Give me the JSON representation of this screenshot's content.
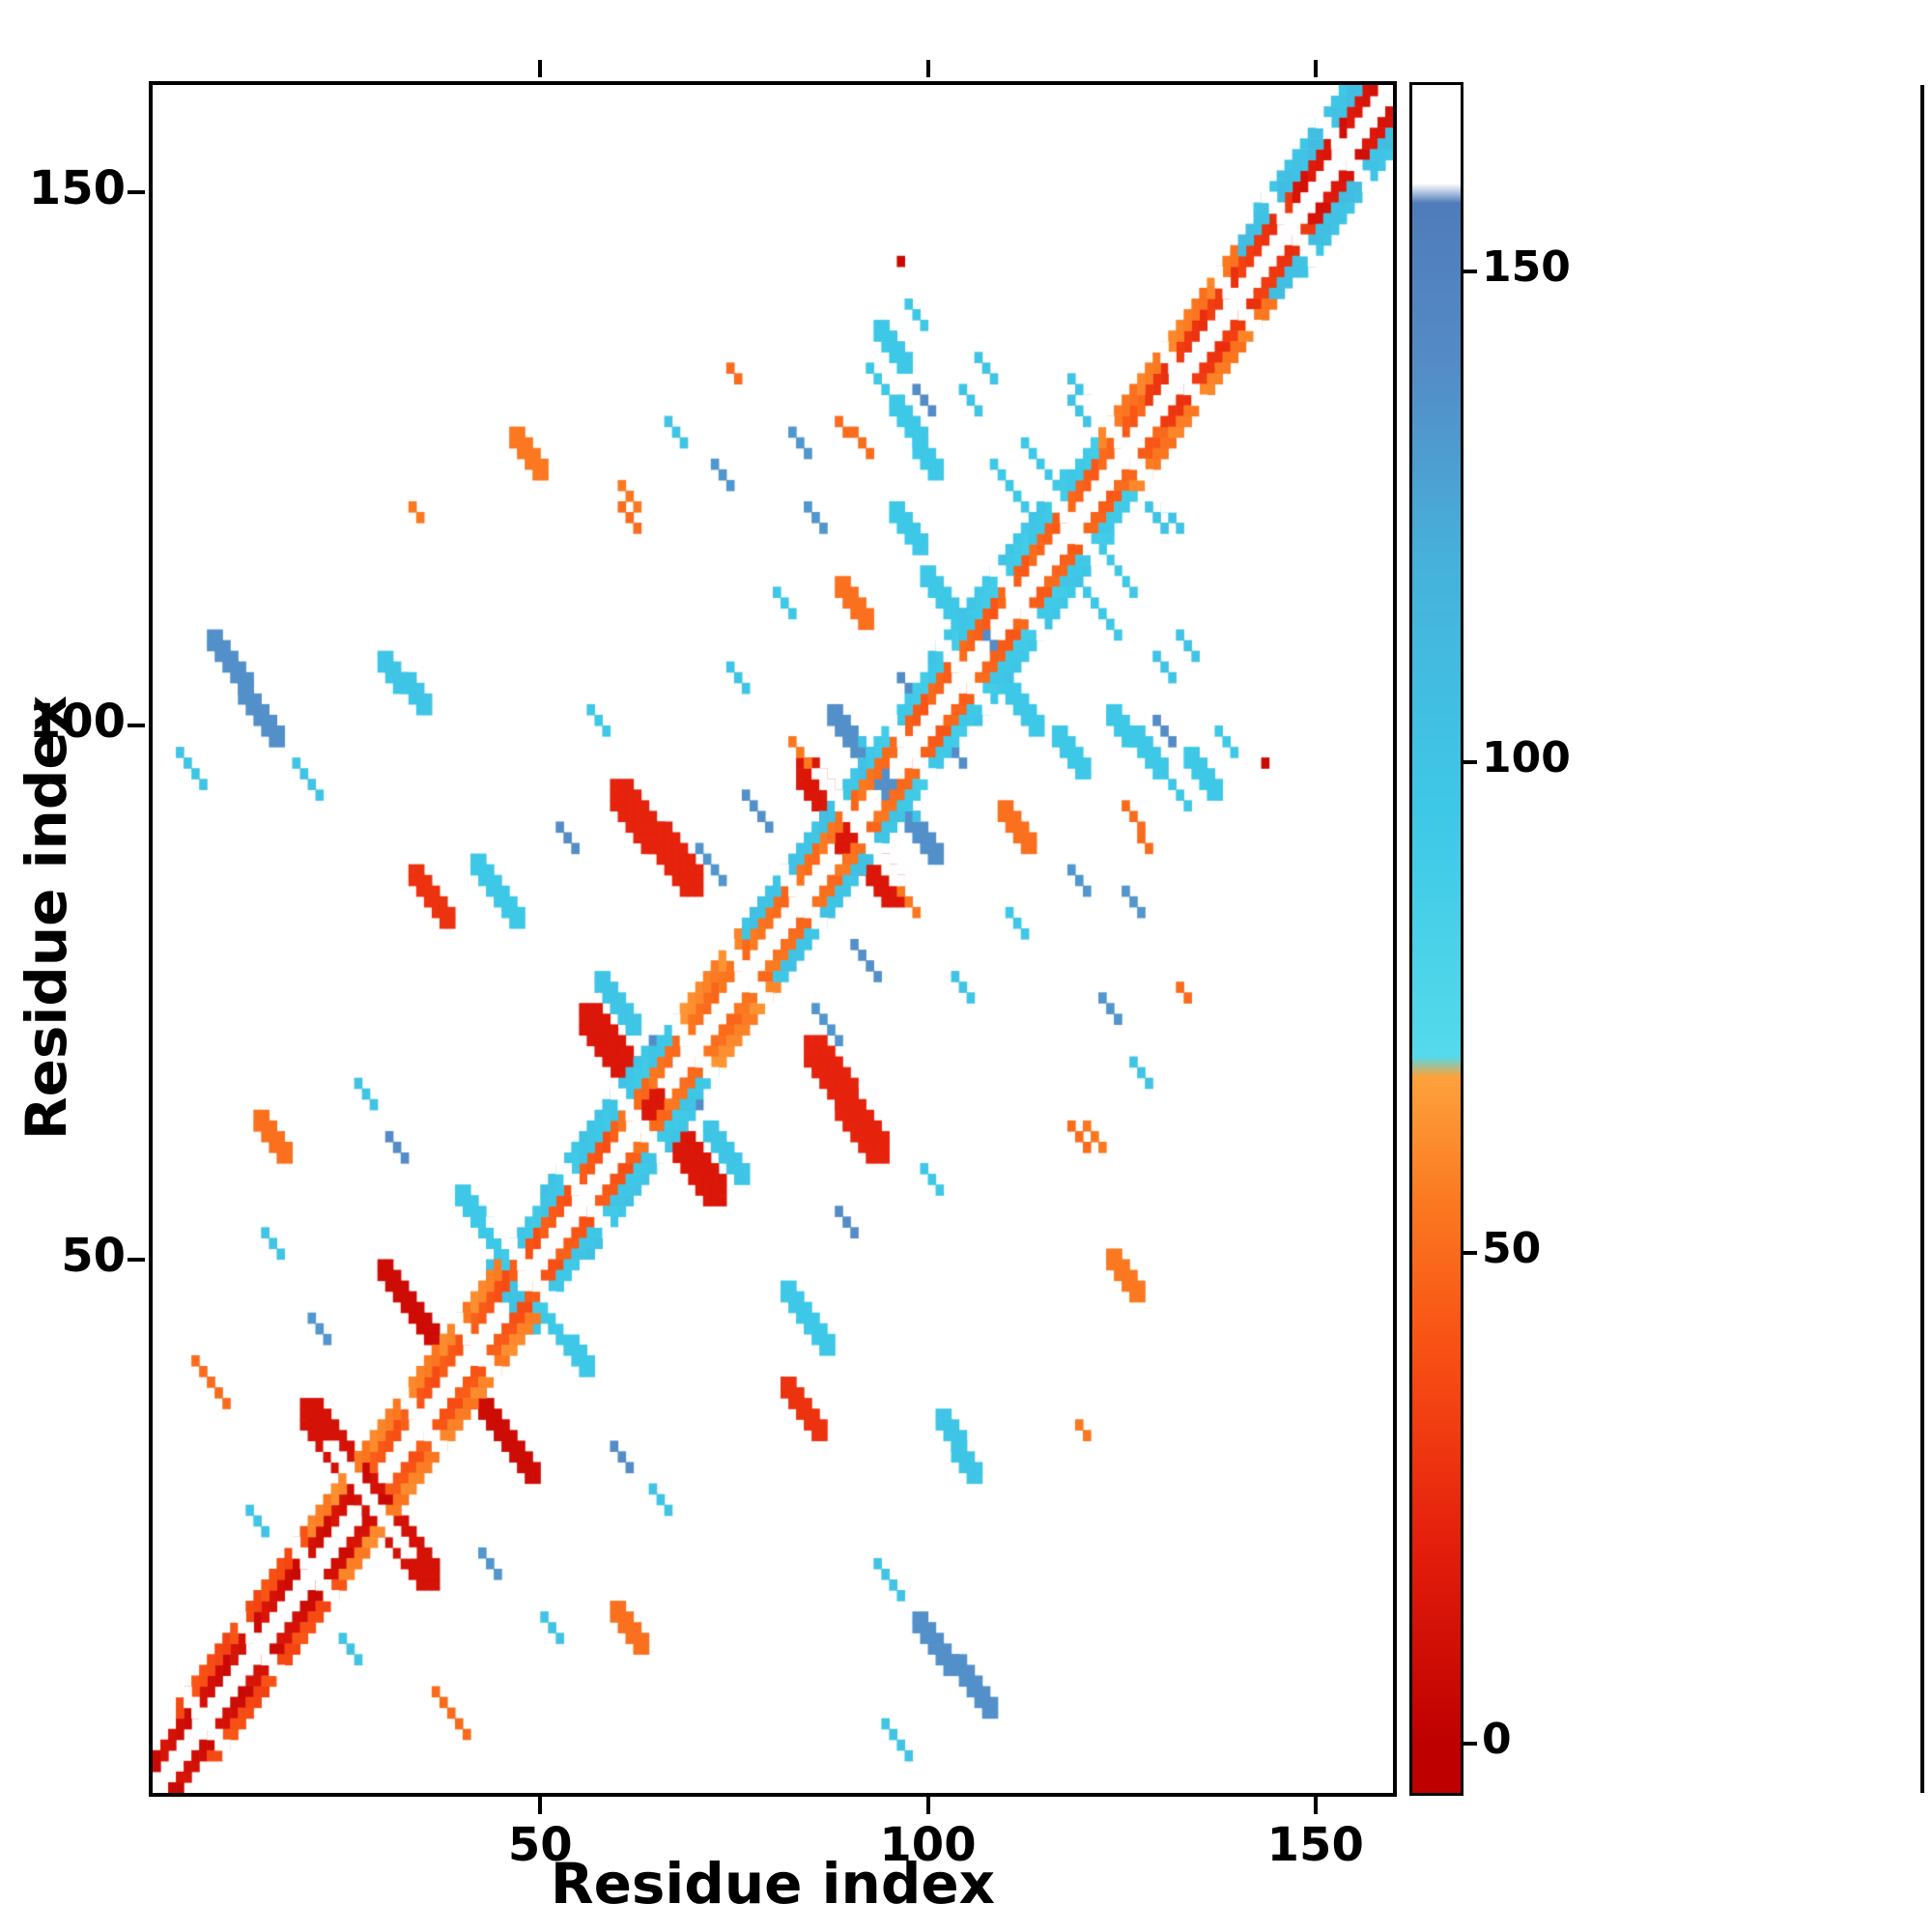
{
  "figure": {
    "background": "#ffffff",
    "frame_color": "#000000"
  },
  "chart_data": {
    "type": "heatmap",
    "title": "",
    "xlabel": "Residue index",
    "ylabel": "Residue index",
    "x_range": [
      0,
      160
    ],
    "y_range": [
      0,
      160
    ],
    "x_ticks": [
      "50",
      "100",
      "150"
    ],
    "x_tick_values": [
      50,
      100,
      150
    ],
    "y_ticks": [
      "50",
      "100",
      "150"
    ],
    "y_tick_values": [
      50,
      100,
      150
    ],
    "grid": false,
    "legend_position": "colorbar-right",
    "n_residues": 160,
    "symmetric": true,
    "colorbar": {
      "domain": [
        -5,
        169
      ],
      "tick_labels": [
        "0",
        "50",
        "100",
        "150"
      ],
      "tick_values": [
        0,
        50,
        100,
        150
      ],
      "colormap_stops": [
        [
          0,
          [
            190,
            0,
            0
          ]
        ],
        [
          20,
          [
            228,
            30,
            12
          ]
        ],
        [
          40,
          [
            248,
            80,
            20
          ]
        ],
        [
          55,
          [
            251,
            120,
            32
          ]
        ],
        [
          68,
          [
            253,
            162,
            60
          ]
        ],
        [
          70,
          [
            84,
            218,
            235
          ]
        ],
        [
          95,
          [
            62,
            200,
            231
          ]
        ],
        [
          120,
          [
            70,
            178,
            220
          ]
        ],
        [
          140,
          [
            84,
            140,
            200
          ]
        ],
        [
          157,
          [
            79,
            124,
            186
          ]
        ],
        [
          159,
          [
            255,
            255,
            255
          ]
        ],
        [
          169,
          [
            255,
            255,
            255
          ]
        ]
      ]
    },
    "diagonal_bands": [
      {
        "offsets": [
          2,
          3
        ],
        "ranges": [
          {
            "from": 0,
            "to": 28,
            "v": 10
          },
          {
            "from": 28,
            "to": 60,
            "v": 42
          },
          {
            "from": 60,
            "to": 95,
            "v": 52
          },
          {
            "from": 95,
            "to": 128,
            "v": 46
          },
          {
            "from": 128,
            "to": 147,
            "v": 30
          },
          {
            "from": 147,
            "to": 158,
            "v": 14
          }
        ]
      },
      {
        "offsets": [
          4,
          5
        ],
        "ranges": [
          {
            "from": 3,
            "to": 20,
            "v": 38
          },
          {
            "from": 20,
            "to": 45,
            "v": 58
          },
          {
            "from": 45,
            "to": 68,
            "v": 96
          },
          {
            "from": 68,
            "to": 76,
            "v": 60
          },
          {
            "from": 76,
            "to": 92,
            "v": 100
          },
          {
            "from": 92,
            "to": 122,
            "v": 93
          },
          {
            "from": 122,
            "to": 140,
            "v": 56
          },
          {
            "from": 140,
            "to": 156,
            "v": 104
          }
        ]
      },
      {
        "offsets": [
          6
        ],
        "ranges": [
          {
            "from": 50,
            "to": 64,
            "v": 100
          },
          {
            "from": 100,
            "to": 118,
            "v": 96
          },
          {
            "from": 142,
            "to": 154,
            "v": 100
          }
        ]
      }
    ],
    "white_slashes": [
      6,
      13,
      20,
      27,
      34,
      41,
      48,
      55,
      62,
      69,
      76,
      83,
      90,
      97,
      104,
      111,
      118,
      125,
      132,
      139,
      146,
      153
    ],
    "segments_format": [
      "x1",
      "y1",
      "x2",
      "y2",
      "value",
      "width"
    ],
    "segments": [
      [
        20,
        35,
        29,
        26,
        12,
        3
      ],
      [
        30,
        49,
        37,
        42,
        8,
        2
      ],
      [
        56,
        72,
        65,
        63,
        15,
        3
      ],
      [
        60,
        93,
        69,
        85,
        22,
        3
      ],
      [
        84,
        95,
        90,
        88,
        15,
        3
      ],
      [
        82,
        98,
        84,
        96,
        55,
        1
      ],
      [
        34,
        86,
        38,
        82,
        28,
        2
      ],
      [
        5,
        40,
        9,
        36,
        50,
        1
      ],
      [
        14,
        63,
        17,
        60,
        52,
        2
      ],
      [
        47,
        127,
        50,
        124,
        55,
        2
      ],
      [
        88,
        128,
        92,
        125,
        50,
        1
      ],
      [
        110,
        92,
        113,
        89,
        52,
        2
      ],
      [
        143,
        96,
        143,
        96,
        6,
        1
      ],
      [
        120,
        62,
        122,
        60,
        55,
        1
      ],
      [
        33,
        120,
        34,
        119,
        55,
        1
      ],
      [
        74,
        133,
        75,
        132,
        50,
        1
      ],
      [
        8,
        108,
        16,
        99,
        138,
        2
      ],
      [
        3,
        97,
        6,
        94,
        100,
        1
      ],
      [
        18,
        96,
        21,
        93,
        100,
        1
      ],
      [
        30,
        106,
        35,
        102,
        98,
        2
      ],
      [
        42,
        87,
        47,
        82,
        95,
        2
      ],
      [
        52,
        90,
        54,
        88,
        140,
        1
      ],
      [
        40,
        56,
        45,
        51,
        95,
        2
      ],
      [
        44,
        49,
        47,
        46,
        102,
        2
      ],
      [
        26,
        66,
        28,
        64,
        100,
        1
      ],
      [
        30,
        61,
        32,
        59,
        140,
        1
      ],
      [
        14,
        52,
        16,
        50,
        100,
        1
      ],
      [
        20,
        44,
        22,
        42,
        135,
        1
      ],
      [
        12,
        26,
        14,
        24,
        100,
        1
      ],
      [
        58,
        76,
        62,
        72,
        98,
        2
      ],
      [
        64,
        70,
        66,
        68,
        140,
        1
      ],
      [
        70,
        88,
        73,
        85,
        135,
        1
      ],
      [
        56,
        101,
        58,
        99,
        95,
        1
      ],
      [
        74,
        105,
        76,
        103,
        100,
        1
      ],
      [
        80,
        112,
        82,
        110,
        95,
        1
      ],
      [
        84,
        120,
        86,
        118,
        135,
        1
      ],
      [
        66,
        128,
        68,
        126,
        100,
        1
      ],
      [
        72,
        124,
        74,
        122,
        135,
        1
      ],
      [
        88,
        101,
        94,
        95,
        138,
        2
      ],
      [
        96,
        93,
        98,
        91,
        100,
        1
      ],
      [
        76,
        93,
        79,
        90,
        138,
        1
      ],
      [
        92,
        133,
        94,
        131,
        95,
        1
      ],
      [
        94,
        137,
        97,
        134,
        95,
        2
      ],
      [
        98,
        131,
        100,
        129,
        140,
        1
      ],
      [
        100,
        114,
        104,
        110,
        95,
        2
      ],
      [
        106,
        109,
        108,
        107,
        140,
        1
      ],
      [
        104,
        131,
        106,
        129,
        100,
        1
      ],
      [
        112,
        126,
        116,
        122,
        95,
        1
      ],
      [
        118,
        132,
        120,
        130,
        100,
        1
      ],
      [
        96,
        120,
        99,
        117,
        95,
        2
      ],
      [
        102,
        98,
        104,
        96,
        140,
        1
      ],
      [
        120,
        112,
        124,
        108,
        95,
        1
      ],
      [
        124,
        101,
        130,
        96,
        95,
        2
      ],
      [
        128,
        120,
        130,
        118,
        100,
        1
      ],
      [
        132,
        108,
        134,
        106,
        100,
        1
      ],
      [
        137,
        99,
        139,
        97,
        95,
        1
      ],
      [
        60,
        120,
        62,
        118,
        50,
        1
      ],
      [
        82,
        127,
        84,
        125,
        135,
        1
      ]
    ]
  }
}
